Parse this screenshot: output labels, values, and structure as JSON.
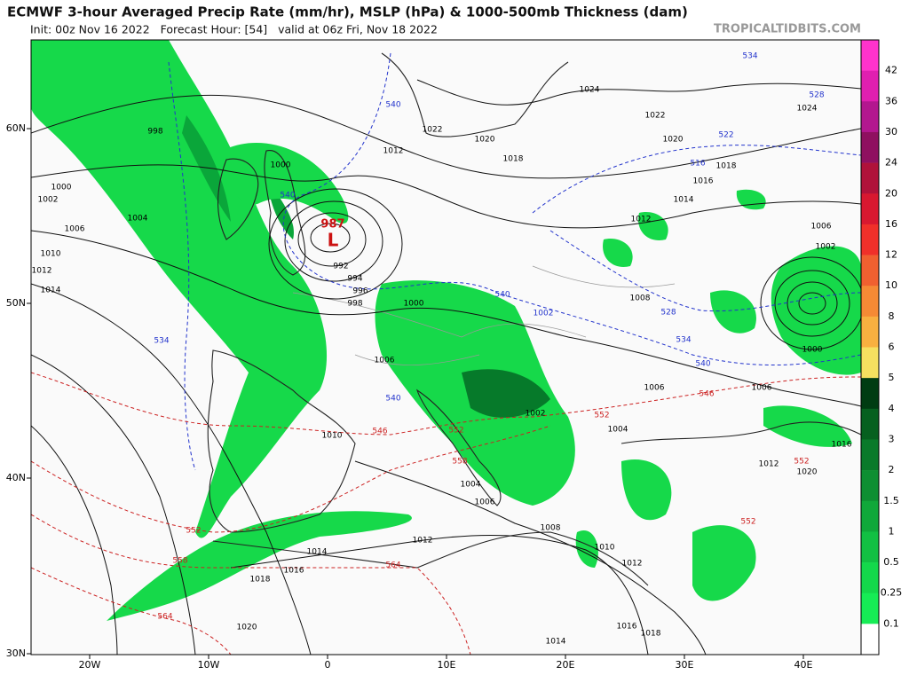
{
  "header": {
    "title": "ECMWF 3-hour Averaged Precip Rate (mm/hr), MSLP (hPa) & 1000-500mb Thickness (dam)",
    "subtitle": "Init: 00z Nov 16 2022   Forecast Hour: [54]   valid at 06z Fri, Nov 18 2022",
    "watermark": "TROPICALTIDBITS.COM"
  },
  "map": {
    "lat_labels": [
      "60N",
      "50N",
      "40N",
      "30N"
    ],
    "lon_labels": [
      "20W",
      "10W",
      "0",
      "10E",
      "20E",
      "30E",
      "40E"
    ],
    "low": {
      "pressure": "987",
      "symbol": "L"
    },
    "isobar_labels": [
      "998",
      "1000",
      "1002",
      "1004",
      "1006",
      "1010",
      "1012",
      "1014",
      "1000",
      "992",
      "994",
      "996",
      "998",
      "1000",
      "1006",
      "1012",
      "1022",
      "1020",
      "1018",
      "1024",
      "1022",
      "1020",
      "1018",
      "1016",
      "1014",
      "1012",
      "1008",
      "1006",
      "1002",
      "1000",
      "1006",
      "1006",
      "1004",
      "1002",
      "1004",
      "1006",
      "1008",
      "1012",
      "1014",
      "1016",
      "1018",
      "1020",
      "1010",
      "1012",
      "1014",
      "1016",
      "1018",
      "1016",
      "1012",
      "1020",
      "1024",
      "1010"
    ],
    "thickness_labels_blue": [
      "534",
      "528",
      "522",
      "516",
      "540",
      "540",
      "534",
      "540",
      "528",
      "534",
      "540",
      "540",
      "1002"
    ],
    "thickness_labels_red": [
      "546",
      "546",
      "552",
      "552",
      "558",
      "552",
      "558",
      "564",
      "564",
      "552",
      "552"
    ]
  },
  "colorbar": {
    "labels": [
      "42",
      "36",
      "30",
      "24",
      "20",
      "16",
      "12",
      "10",
      "8",
      "6",
      "5",
      "4",
      "3",
      "2",
      "1.5",
      "1",
      "0.5",
      "0.25",
      "0.1"
    ],
    "colors": [
      "#ff33cc",
      "#e01fb0",
      "#b3178f",
      "#8f1060",
      "#b0123a",
      "#d81830",
      "#f0302a",
      "#f06030",
      "#f58a35",
      "#f8b040",
      "#f5e060",
      "#003c12",
      "#06601f",
      "#0a7a2a",
      "#0e8f32",
      "#10a83a",
      "#12c043",
      "#14d84b",
      "#16ec55",
      "#ffffff"
    ]
  }
}
